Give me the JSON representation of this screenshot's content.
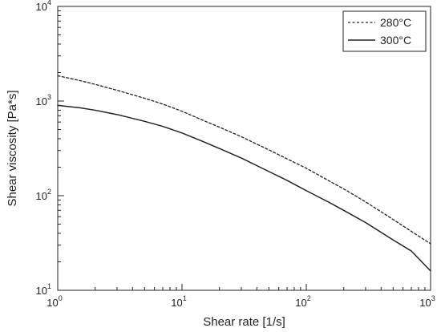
{
  "chart_data": {
    "type": "line",
    "xlabel": "Shear rate [1/s]",
    "ylabel": "Shear viscosity [Pa*s]",
    "xscale": "log",
    "yscale": "log",
    "xlim": [
      1,
      1000
    ],
    "ylim": [
      10,
      10000
    ],
    "grid": false,
    "legend_position": "top-right",
    "x_ticks": [
      {
        "base": "10",
        "exp": "0",
        "value": 1
      },
      {
        "base": "10",
        "exp": "1",
        "value": 10
      },
      {
        "base": "10",
        "exp": "2",
        "value": 100
      },
      {
        "base": "10",
        "exp": "3",
        "value": 1000
      }
    ],
    "y_ticks": [
      {
        "base": "10",
        "exp": "1",
        "value": 10
      },
      {
        "base": "10",
        "exp": "2",
        "value": 100
      },
      {
        "base": "10",
        "exp": "3",
        "value": 1000
      },
      {
        "base": "10",
        "exp": "4",
        "value": 10000
      }
    ],
    "series": [
      {
        "name": "280°C",
        "style": "dashed",
        "color": "#222222",
        "x": [
          1,
          1.5,
          2,
          3,
          5,
          7,
          10,
          15,
          20,
          30,
          50,
          70,
          100,
          150,
          200,
          300,
          500,
          700,
          1000
        ],
        "y": [
          1850,
          1650,
          1500,
          1300,
          1070,
          930,
          780,
          620,
          530,
          420,
          305,
          245,
          195,
          145,
          118,
          86,
          56,
          42,
          31
        ]
      },
      {
        "name": "300°C",
        "style": "solid",
        "color": "#222222",
        "x": [
          1,
          1.5,
          2,
          3,
          5,
          7,
          10,
          15,
          20,
          30,
          50,
          70,
          100,
          150,
          200,
          300,
          500,
          700,
          1000
        ],
        "y": [
          900,
          850,
          800,
          720,
          610,
          540,
          460,
          370,
          315,
          250,
          180,
          145,
          113,
          86,
          70,
          52,
          34,
          26,
          16
        ]
      }
    ]
  }
}
